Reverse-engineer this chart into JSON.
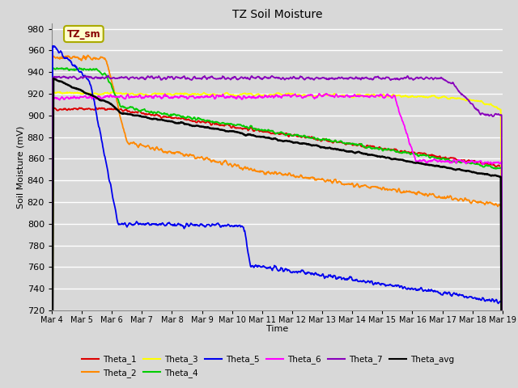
{
  "title": "TZ Soil Moisture",
  "xlabel": "Time",
  "ylabel": "Soil Moisture (mV)",
  "ylim": [
    720,
    985
  ],
  "yticks": [
    720,
    740,
    760,
    780,
    800,
    820,
    840,
    860,
    880,
    900,
    920,
    940,
    960,
    980
  ],
  "background_color": "#d8d8d8",
  "plot_bg_color": "#d8d8d8",
  "grid_color": "#ffffff",
  "legend_label": "TZ_sm",
  "series_order": [
    "Theta_1",
    "Theta_2",
    "Theta_3",
    "Theta_4",
    "Theta_5",
    "Theta_6",
    "Theta_7",
    "Theta_avg"
  ],
  "series": {
    "Theta_1": {
      "color": "#dd0000",
      "lw": 1.3
    },
    "Theta_2": {
      "color": "#ff8800",
      "lw": 1.3
    },
    "Theta_3": {
      "color": "#ffff00",
      "lw": 1.3
    },
    "Theta_4": {
      "color": "#00cc00",
      "lw": 1.3
    },
    "Theta_5": {
      "color": "#0000ee",
      "lw": 1.3
    },
    "Theta_6": {
      "color": "#ff00ff",
      "lw": 1.3
    },
    "Theta_7": {
      "color": "#8800bb",
      "lw": 1.3
    },
    "Theta_avg": {
      "color": "#000000",
      "lw": 1.8
    }
  },
  "n_points": 1080,
  "x_start": 0,
  "x_end": 15,
  "xtick_labels": [
    "Mar 4",
    "Mar 5",
    "Mar 6",
    "Mar 7",
    "Mar 8",
    "Mar 9",
    "Mar 10",
    "Mar 11",
    "Mar 12",
    "Mar 13",
    "Mar 14",
    "Mar 15",
    "Mar 16",
    "Mar 17",
    "Mar 18",
    "Mar 19"
  ],
  "xtick_positions": [
    0,
    1,
    2,
    3,
    4,
    5,
    6,
    7,
    8,
    9,
    10,
    11,
    12,
    13,
    14,
    15
  ]
}
